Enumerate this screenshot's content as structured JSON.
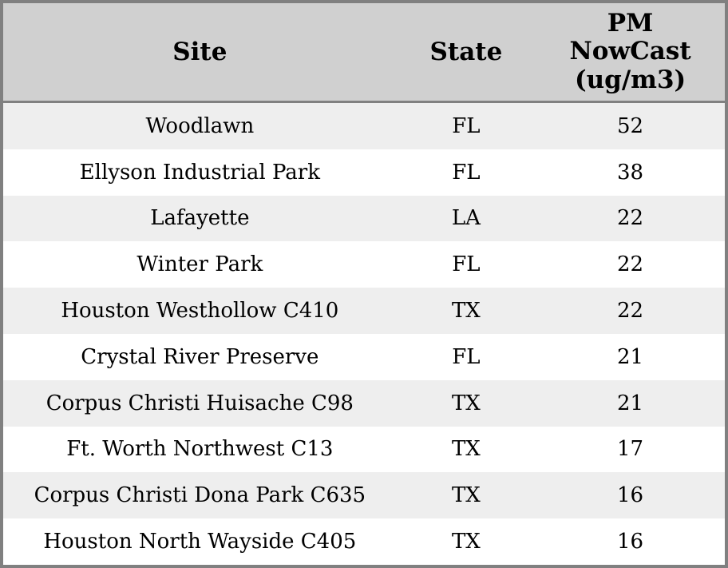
{
  "table": {
    "columns": [
      {
        "key": "site",
        "label": "Site"
      },
      {
        "key": "state",
        "label": "State"
      },
      {
        "key": "value",
        "label": "PM NowCast (ug/m3)"
      }
    ],
    "rows": [
      {
        "site": "Woodlawn",
        "state": "FL",
        "value": "52"
      },
      {
        "site": "Ellyson Industrial Park",
        "state": "FL",
        "value": "38"
      },
      {
        "site": "Lafayette",
        "state": "LA",
        "value": "22"
      },
      {
        "site": "Winter Park",
        "state": "FL",
        "value": "22"
      },
      {
        "site": "Houston Westhollow C410",
        "state": "TX",
        "value": "22"
      },
      {
        "site": "Crystal River Preserve",
        "state": "FL",
        "value": "21"
      },
      {
        "site": "Corpus Christi Huisache C98",
        "state": "TX",
        "value": "21"
      },
      {
        "site": "Ft. Worth Northwest C13",
        "state": "TX",
        "value": "17"
      },
      {
        "site": "Corpus Christi Dona Park C635",
        "state": "TX",
        "value": "16"
      },
      {
        "site": "Houston North Wayside C405",
        "state": "TX",
        "value": "16"
      }
    ]
  },
  "colors": {
    "border": "#808080",
    "header_bg": "#d0d0d0",
    "row_alt_bg": "#eeeeee",
    "row_bg": "#ffffff",
    "text": "#000000"
  },
  "chart_data": {
    "type": "table",
    "title": "",
    "columns": [
      "Site",
      "State",
      "PM NowCast (ug/m3)"
    ],
    "rows": [
      [
        "Woodlawn",
        "FL",
        52
      ],
      [
        "Ellyson Industrial Park",
        "FL",
        38
      ],
      [
        "Lafayette",
        "LA",
        22
      ],
      [
        "Winter Park",
        "FL",
        22
      ],
      [
        "Houston Westhollow C410",
        "TX",
        22
      ],
      [
        "Crystal River Preserve",
        "FL",
        21
      ],
      [
        "Corpus Christi Huisache C98",
        "TX",
        21
      ],
      [
        "Ft. Worth Northwest C13",
        "TX",
        17
      ],
      [
        "Corpus Christi Dona Park C635",
        "TX",
        16
      ],
      [
        "Houston North Wayside C405",
        "TX",
        16
      ]
    ],
    "layout_hints": {
      "header_background": "#d0d0d0",
      "alternating_row_background": "#eeeeee",
      "alignment": "center",
      "sorted_by": "PM NowCast (ug/m3) descending"
    }
  }
}
